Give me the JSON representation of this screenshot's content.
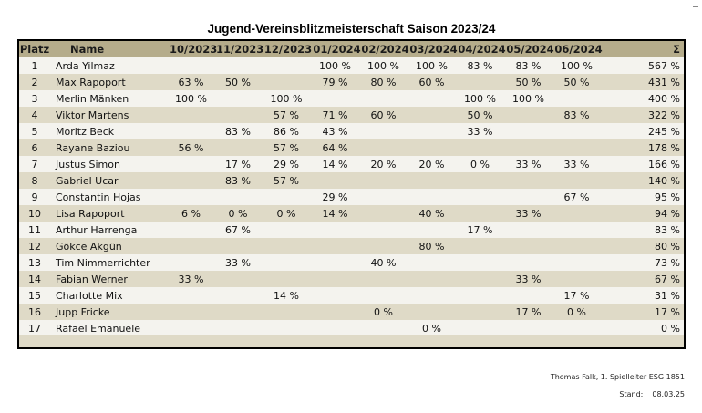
{
  "title": "Jugend-Vereinsblitzmeisterschaft Saison 2023/24",
  "headers": {
    "place": "Platz",
    "name": "Name",
    "months": [
      "10/2023",
      "11/2023",
      "12/2023",
      "01/2024",
      "02/2024",
      "03/2024",
      "04/2024",
      "05/2024",
      "06/2024"
    ],
    "total": "Σ"
  },
  "rows": [
    {
      "place": "1",
      "name": "Arda Yilmaz",
      "m": [
        "",
        "",
        "",
        "100 %",
        "100 %",
        "100 %",
        "83 %",
        "83 %",
        "100 %"
      ],
      "total": "567 %"
    },
    {
      "place": "2",
      "name": "Max Rapoport",
      "m": [
        "63 %",
        "50 %",
        "",
        "79 %",
        "80 %",
        "60 %",
        "",
        "50 %",
        "50 %"
      ],
      "total": "431 %"
    },
    {
      "place": "3",
      "name": "Merlin Mänken",
      "m": [
        "100 %",
        "",
        "100 %",
        "",
        "",
        "",
        "100 %",
        "100 %",
        ""
      ],
      "total": "400 %"
    },
    {
      "place": "4",
      "name": "Viktor Martens",
      "m": [
        "",
        "",
        "57 %",
        "71 %",
        "60 %",
        "",
        "50 %",
        "",
        "83 %"
      ],
      "total": "322 %"
    },
    {
      "place": "5",
      "name": "Moritz Beck",
      "m": [
        "",
        "83 %",
        "86 %",
        "43 %",
        "",
        "",
        "33 %",
        "",
        ""
      ],
      "total": "245 %"
    },
    {
      "place": "6",
      "name": "Rayane Baziou",
      "m": [
        "56 %",
        "",
        "57 %",
        "64 %",
        "",
        "",
        "",
        "",
        ""
      ],
      "total": "178 %"
    },
    {
      "place": "7",
      "name": "Justus Simon",
      "m": [
        "",
        "17 %",
        "29 %",
        "14 %",
        "20 %",
        "20 %",
        "0 %",
        "33 %",
        "33 %"
      ],
      "total": "166 %"
    },
    {
      "place": "8",
      "name": "Gabriel Ucar",
      "m": [
        "",
        "83 %",
        "57 %",
        "",
        "",
        "",
        "",
        "",
        ""
      ],
      "total": "140 %"
    },
    {
      "place": "9",
      "name": "Constantin Hojas",
      "m": [
        "",
        "",
        "",
        "29 %",
        "",
        "",
        "",
        "",
        "67 %"
      ],
      "total": "95 %"
    },
    {
      "place": "10",
      "name": "Lisa Rapoport",
      "m": [
        "6 %",
        "0 %",
        "0 %",
        "14 %",
        "",
        "40 %",
        "",
        "33 %",
        ""
      ],
      "total": "94 %"
    },
    {
      "place": "11",
      "name": "Arthur Harrenga",
      "m": [
        "",
        "67 %",
        "",
        "",
        "",
        "",
        "17 %",
        "",
        ""
      ],
      "total": "83 %"
    },
    {
      "place": "12",
      "name": "Gökce Akgün",
      "m": [
        "",
        "",
        "",
        "",
        "",
        "80 %",
        "",
        "",
        ""
      ],
      "total": "80 %"
    },
    {
      "place": "13",
      "name": "Tim Nimmerrichter",
      "m": [
        "",
        "33 %",
        "",
        "",
        "40 %",
        "",
        "",
        "",
        ""
      ],
      "total": "73 %"
    },
    {
      "place": "14",
      "name": "Fabian Werner",
      "m": [
        "33 %",
        "",
        "",
        "",
        "",
        "",
        "",
        "33 %",
        ""
      ],
      "total": "67 %"
    },
    {
      "place": "15",
      "name": "Charlotte Mix",
      "m": [
        "",
        "",
        "14 %",
        "",
        "",
        "",
        "",
        "",
        "17 %"
      ],
      "total": "31 %"
    },
    {
      "place": "16",
      "name": "Jupp Fricke",
      "m": [
        "",
        "",
        "",
        "",
        "0 %",
        "",
        "",
        "17 %",
        "0 %"
      ],
      "total": "17 %"
    },
    {
      "place": "17",
      "name": "Rafael Emanuele",
      "m": [
        "",
        "",
        "",
        "",
        "",
        "0 %",
        "",
        "",
        ""
      ],
      "total": "0 %"
    }
  ],
  "footer": {
    "author": "Thomas Falk, 1. Spielleiter ESG 1851",
    "stand_label": "Stand:",
    "stand_date": "08.03.25"
  },
  "colors": {
    "header_bg": "#b5ac8b",
    "row_light": "#f4f3ee",
    "row_dark": "#dfdac7"
  }
}
